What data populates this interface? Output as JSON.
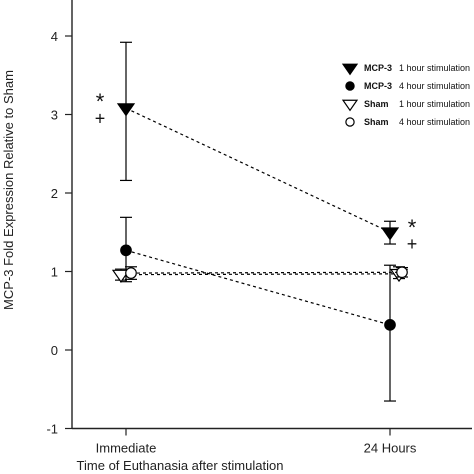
{
  "chart_data": {
    "type": "line",
    "categories": [
      "Immediate",
      "24 Hours"
    ],
    "xlabel": "Time of Euthanasia after stimulation",
    "ylabel": "MCP-3  Fold Expression Relative to Sham",
    "ylim": [
      -1,
      4.4
    ],
    "yticks": [
      "-1",
      "0",
      "1",
      "2",
      "3",
      "4"
    ],
    "grid": false,
    "legend_position": "right",
    "series": [
      {
        "name": "MCP-3",
        "note": "1 hour stimulation",
        "marker": "triangle-down-filled",
        "values": [
          3.08,
          1.5
        ],
        "error": [
          [
            2.16,
            3.92
          ],
          [
            1.35,
            1.64
          ]
        ]
      },
      {
        "name": "MCP-3",
        "note": "4 hour stimulation",
        "marker": "circle-filled",
        "values": [
          1.27,
          0.32
        ],
        "error": [
          [
            0.87,
            1.69
          ],
          [
            -0.65,
            1.08
          ]
        ]
      },
      {
        "name": "Sham",
        "note": "1 hour stimulation",
        "marker": "triangle-down-open",
        "values": [
          0.96,
          0.97
        ],
        "error": [
          [
            0.89,
            1.03
          ],
          [
            0.91,
            1.06
          ]
        ]
      },
      {
        "name": "Sham",
        "note": "4 hour stimulation",
        "marker": "circle-open",
        "values": [
          0.98,
          0.99
        ],
        "error": [
          [
            0.9,
            1.06
          ],
          [
            0.93,
            1.05
          ]
        ]
      }
    ],
    "annotations": [
      {
        "text": "*",
        "category": 0,
        "y": 3.22
      },
      {
        "text": "+",
        "category": 0,
        "y": 2.95
      },
      {
        "text": "*",
        "category": 1,
        "y": 1.62
      },
      {
        "text": "+",
        "category": 1,
        "y": 1.35
      }
    ]
  }
}
